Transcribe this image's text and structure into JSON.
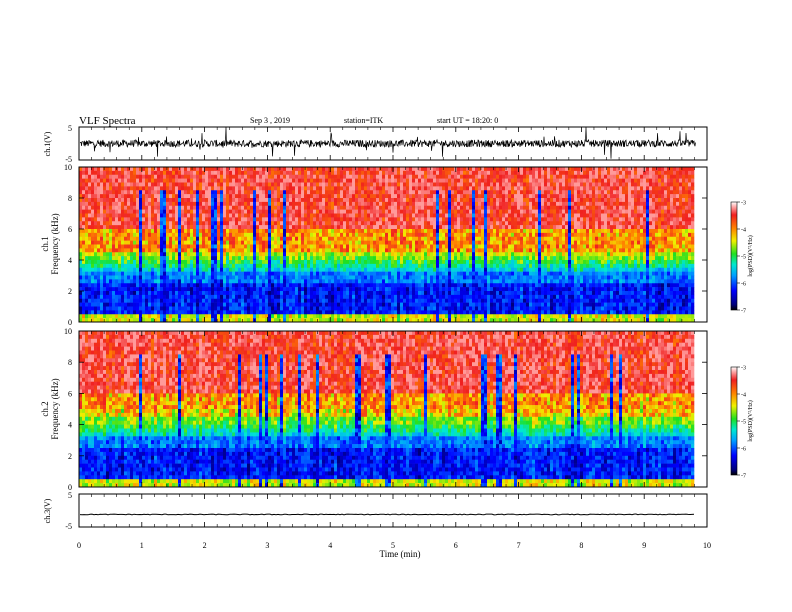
{
  "header": {
    "title": "VLF Spectra",
    "date": "Sep 3 , 2019",
    "station": "station=ITK",
    "start": "start UT = 18:20: 0"
  },
  "chart_data": [
    {
      "type": "line",
      "ylabel": "ch.1(V)",
      "ylim": [
        -5,
        5
      ],
      "yticks": [
        "5",
        "-5"
      ],
      "trace_level": 0.0
    },
    {
      "type": "heatmap",
      "ylabel_top": "ch.1",
      "ylabel": "Frequency (kHz)",
      "ylim": [
        0,
        10
      ],
      "yticks": [
        "0",
        "2",
        "4",
        "6",
        "8",
        "10"
      ],
      "colorbar": {
        "label": "log(PSD)(V²/Hz)",
        "ticks": [
          "-3",
          "-4",
          "-5",
          "-6",
          "-7"
        ],
        "range": [
          -7,
          -3
        ]
      }
    },
    {
      "type": "heatmap",
      "ylabel_top": "ch.2",
      "ylabel": "Frequency (kHz)",
      "ylim": [
        0,
        10
      ],
      "yticks": [
        "0",
        "2",
        "4",
        "6",
        "8",
        "10"
      ],
      "colorbar": {
        "label": "log(PSD)(V²/Hz)",
        "ticks": [
          "-3",
          "-4",
          "-5",
          "-6",
          "-7"
        ],
        "range": [
          -7,
          -3
        ]
      }
    },
    {
      "type": "line",
      "ylabel": "ch.3(V)",
      "ylim": [
        -5,
        5
      ],
      "yticks": [
        "5",
        "-5"
      ],
      "trace_level": -1.2
    }
  ],
  "xaxis": {
    "label": "Time (min)",
    "xlim": [
      0,
      10
    ],
    "ticks": [
      "0",
      "1",
      "2",
      "3",
      "4",
      "5",
      "6",
      "7",
      "8",
      "9",
      "10"
    ],
    "data_end": 9.82
  }
}
